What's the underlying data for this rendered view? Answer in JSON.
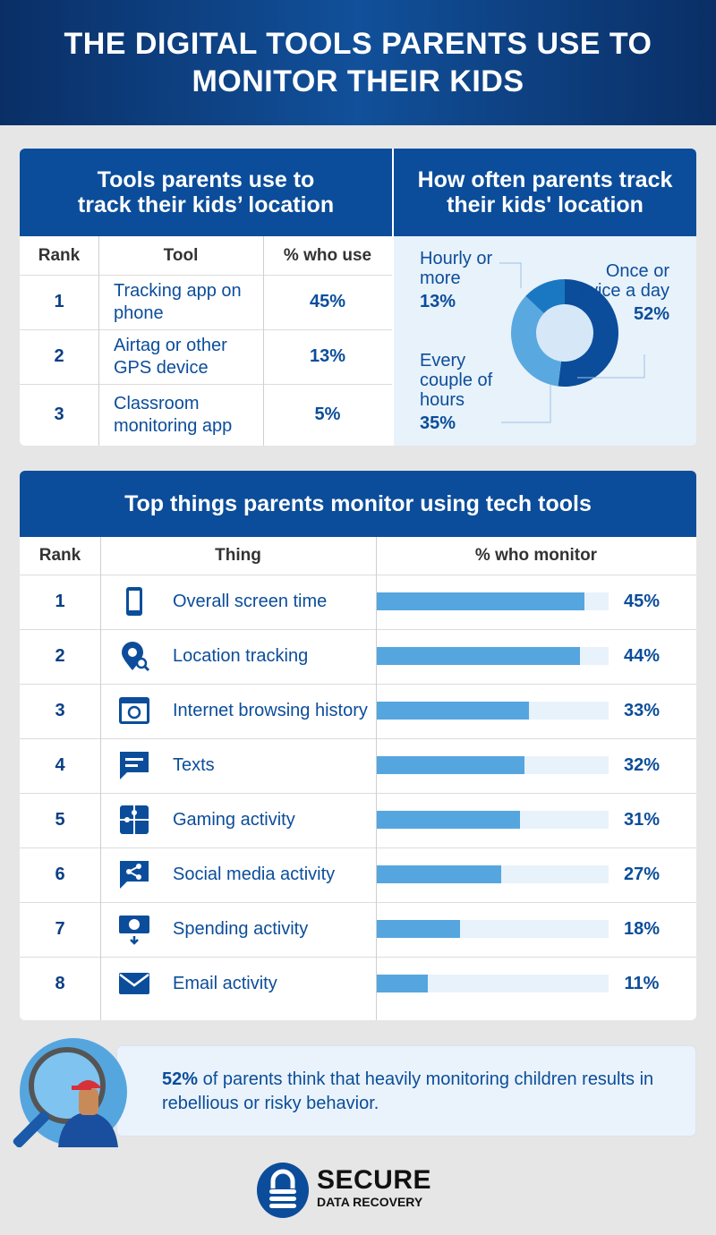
{
  "title": "THE DIGITAL TOOLS PARENTS USE TO MONITOR THEIR KIDS",
  "tools_table": {
    "heading": "Tools parents use to track their kids’ location",
    "headers": [
      "Rank",
      "Tool",
      "% who use"
    ],
    "rows": [
      {
        "rank": "1",
        "tool": "Tracking app on phone",
        "pct": "45%"
      },
      {
        "rank": "2",
        "tool": "Airtag or other GPS device",
        "pct": "13%"
      },
      {
        "rank": "3",
        "tool": "Classroom monitoring app",
        "pct": "5%"
      }
    ]
  },
  "frequency": {
    "heading": "How often parents track their kids' location",
    "labels": [
      {
        "text": "Once or twice a day",
        "pct": "52%"
      },
      {
        "text": "Every couple of hours",
        "pct": "35%"
      },
      {
        "text": "Hourly or more",
        "pct": "13%"
      }
    ]
  },
  "monitor_table": {
    "heading": "Top things parents monitor using tech tools",
    "headers": [
      "Rank",
      "Thing",
      "% who monitor"
    ],
    "rows": [
      {
        "rank": "1",
        "thing": "Overall screen time",
        "pct": "45%",
        "icon": "phone-icon"
      },
      {
        "rank": "2",
        "thing": "Location tracking",
        "pct": "44%",
        "icon": "location-search-icon"
      },
      {
        "rank": "3",
        "thing": "Internet browsing history",
        "pct": "33%",
        "icon": "browser-history-icon"
      },
      {
        "rank": "4",
        "thing": "Texts",
        "pct": "32%",
        "icon": "message-icon"
      },
      {
        "rank": "5",
        "thing": "Gaming activity",
        "pct": "31%",
        "icon": "puzzle-icon"
      },
      {
        "rank": "6",
        "thing": "Social media activity",
        "pct": "27%",
        "icon": "share-icon"
      },
      {
        "rank": "7",
        "thing": "Spending activity",
        "pct": "18%",
        "icon": "money-icon"
      },
      {
        "rank": "8",
        "thing": "Email activity",
        "pct": "11%",
        "icon": "envelope-icon"
      }
    ]
  },
  "callout": {
    "bold": "52%",
    "text": " of parents think that heavily monitoring children results in rebellious or risky behavior."
  },
  "logo": {
    "line1": "SECURE",
    "line2": "DATA RECOVERY"
  },
  "colors": {
    "dark_blue": "#0b4d9a",
    "bar": "#55a6df",
    "track": "#e8f2fb",
    "mid_blue": "#1a78c2"
  },
  "chart_data": [
    {
      "type": "pie",
      "donut": true,
      "title": "How often parents track their kids' location",
      "categories": [
        "Once or twice a day",
        "Every couple of hours",
        "Hourly or more"
      ],
      "values": [
        52,
        35,
        13
      ],
      "colors": [
        "#0b4d9a",
        "#5aa8e0",
        "#1a78c2"
      ]
    },
    {
      "type": "bar",
      "orientation": "horizontal",
      "title": "Top things parents monitor using tech tools",
      "categories": [
        "Overall screen time",
        "Location tracking",
        "Internet browsing history",
        "Texts",
        "Gaming activity",
        "Social media activity",
        "Spending activity",
        "Email activity"
      ],
      "values": [
        45,
        44,
        33,
        32,
        31,
        27,
        18,
        11
      ],
      "unit": "%"
    }
  ]
}
